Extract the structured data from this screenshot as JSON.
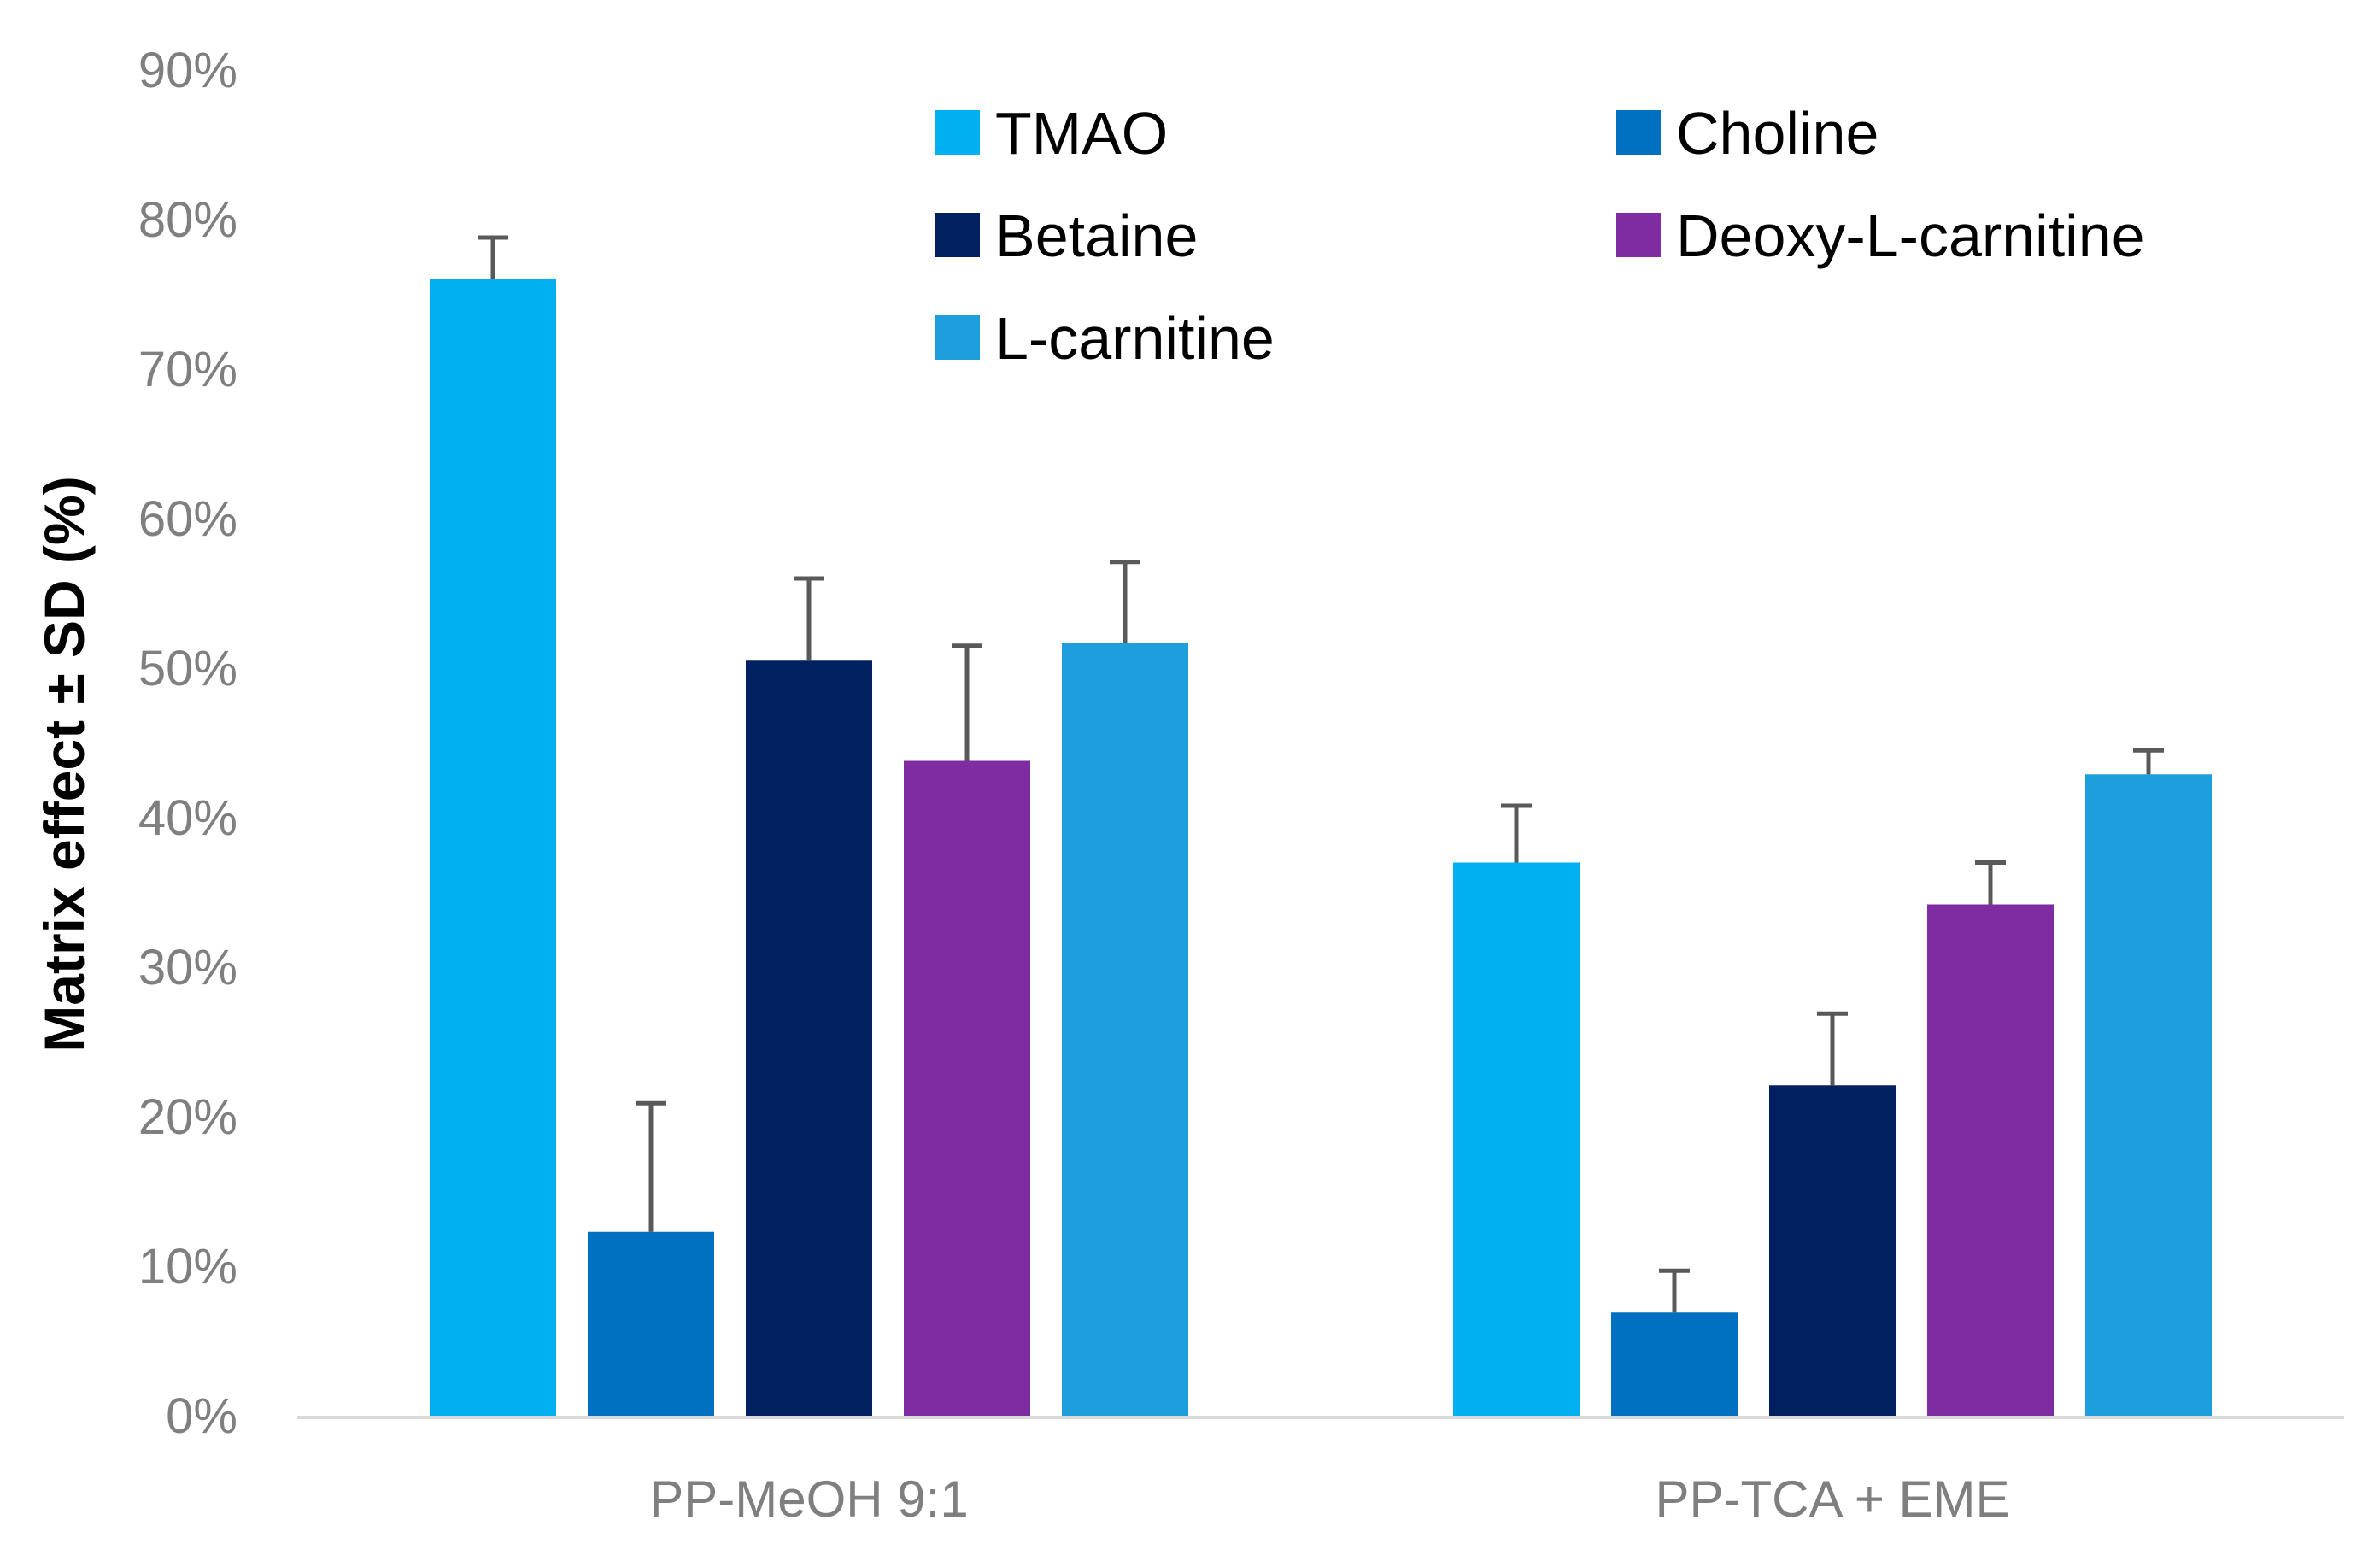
{
  "chart_data": {
    "type": "bar",
    "title": "",
    "xlabel": "",
    "ylabel": "Matrix effect ± SD (%)",
    "ylim": [
      0,
      90
    ],
    "ytick_step": 10,
    "ytick_suffix": "%",
    "grid": false,
    "legend_position": "top-right",
    "categories": [
      "PP-MeOH 9:1",
      "PP-TCA + EME"
    ],
    "series": [
      {
        "name": "TMAO",
        "color": "#00B0F0",
        "values": [
          76.0,
          37.0
        ],
        "sd": [
          2.8,
          3.8
        ]
      },
      {
        "name": "Choline",
        "color": "#0070C0",
        "values": [
          12.3,
          6.9
        ],
        "sd": [
          8.6,
          2.8
        ]
      },
      {
        "name": "Betaine",
        "color": "#002060",
        "values": [
          50.5,
          22.1
        ],
        "sd": [
          5.5,
          4.8
        ]
      },
      {
        "name": "Deoxy-L-carnitine",
        "color": "#7F2CA2",
        "values": [
          43.8,
          34.2
        ],
        "sd": [
          7.7,
          2.8
        ]
      },
      {
        "name": "L-carnitine",
        "color": "#1F9EDD",
        "values": [
          51.7,
          42.9
        ],
        "sd": [
          5.4,
          1.6
        ]
      }
    ]
  }
}
